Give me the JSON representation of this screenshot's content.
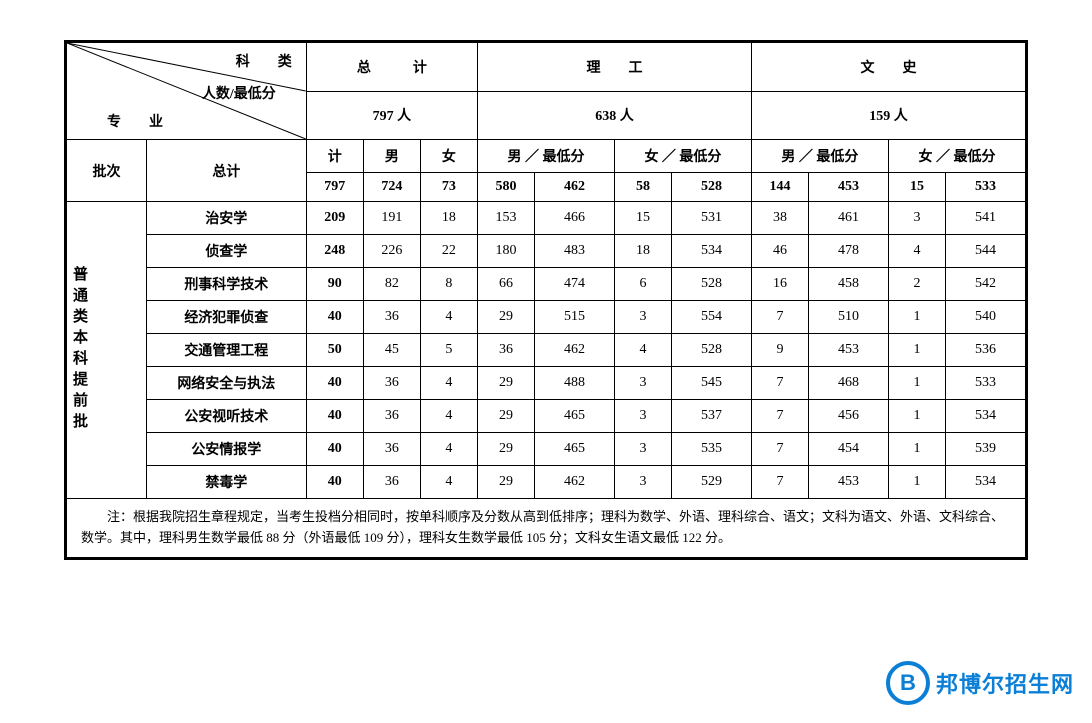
{
  "diag": {
    "top_right": "科　　类",
    "mid": "人数/最低分",
    "bottom_left": "专　　业"
  },
  "group_headers": {
    "total": "总　　　计",
    "sci": "理　　工",
    "lib": "文　　史"
  },
  "group_counts": {
    "total": "797 人",
    "sci": "638 人",
    "lib": "159 人"
  },
  "col_labels": {
    "batch": "批次",
    "total": "总计",
    "ji": "计",
    "nan": "男",
    "nv": "女",
    "nan_min": "男 ／ 最低分",
    "nv_min": "女 ／ 最低分"
  },
  "batch_label": "普通类本科提前批",
  "totals_row": {
    "ji": "797",
    "nan": "724",
    "nv": "73",
    "s_n": "580",
    "s_nm": "462",
    "s_v": "58",
    "s_vm": "528",
    "l_n": "144",
    "l_nm": "453",
    "l_v": "15",
    "l_vm": "533"
  },
  "rows": [
    {
      "name": "治安学",
      "ji": "209",
      "nan": "191",
      "nv": "18",
      "s_n": "153",
      "s_nm": "466",
      "s_v": "15",
      "s_vm": "531",
      "l_n": "38",
      "l_nm": "461",
      "l_v": "3",
      "l_vm": "541"
    },
    {
      "name": "侦查学",
      "ji": "248",
      "nan": "226",
      "nv": "22",
      "s_n": "180",
      "s_nm": "483",
      "s_v": "18",
      "s_vm": "534",
      "l_n": "46",
      "l_nm": "478",
      "l_v": "4",
      "l_vm": "544"
    },
    {
      "name": "刑事科学技术",
      "ji": "90",
      "nan": "82",
      "nv": "8",
      "s_n": "66",
      "s_nm": "474",
      "s_v": "6",
      "s_vm": "528",
      "l_n": "16",
      "l_nm": "458",
      "l_v": "2",
      "l_vm": "542"
    },
    {
      "name": "经济犯罪侦查",
      "ji": "40",
      "nan": "36",
      "nv": "4",
      "s_n": "29",
      "s_nm": "515",
      "s_v": "3",
      "s_vm": "554",
      "l_n": "7",
      "l_nm": "510",
      "l_v": "1",
      "l_vm": "540"
    },
    {
      "name": "交通管理工程",
      "ji": "50",
      "nan": "45",
      "nv": "5",
      "s_n": "36",
      "s_nm": "462",
      "s_v": "4",
      "s_vm": "528",
      "l_n": "9",
      "l_nm": "453",
      "l_v": "1",
      "l_vm": "536"
    },
    {
      "name": "网络安全与执法",
      "ji": "40",
      "nan": "36",
      "nv": "4",
      "s_n": "29",
      "s_nm": "488",
      "s_v": "3",
      "s_vm": "545",
      "l_n": "7",
      "l_nm": "468",
      "l_v": "1",
      "l_vm": "533"
    },
    {
      "name": "公安视听技术",
      "ji": "40",
      "nan": "36",
      "nv": "4",
      "s_n": "29",
      "s_nm": "465",
      "s_v": "3",
      "s_vm": "537",
      "l_n": "7",
      "l_nm": "456",
      "l_v": "1",
      "l_vm": "534"
    },
    {
      "name": "公安情报学",
      "ji": "40",
      "nan": "36",
      "nv": "4",
      "s_n": "29",
      "s_nm": "465",
      "s_v": "3",
      "s_vm": "535",
      "l_n": "7",
      "l_nm": "454",
      "l_v": "1",
      "l_vm": "539"
    },
    {
      "name": "禁毒学",
      "ji": "40",
      "nan": "36",
      "nv": "4",
      "s_n": "29",
      "s_nm": "462",
      "s_v": "3",
      "s_vm": "529",
      "l_n": "7",
      "l_nm": "453",
      "l_v": "1",
      "l_vm": "534"
    }
  ],
  "note": "注：根据我院招生章程规定，当考生投档分相同时，按单科顺序及分数从高到低排序；理科为数学、外语、理科综合、语文；文科为语文、外语、文科综合、数学。其中，理科男生数学最低 88 分（外语最低 109 分），理科女生数学最低 105 分；文科女生语文最低 122 分。",
  "logo": {
    "b": "B",
    "text": "邦博尔招生网"
  },
  "style": {
    "border_color": "#000000",
    "logo_color": "#0b7fd6",
    "font_header": 14,
    "font_note": 13
  }
}
